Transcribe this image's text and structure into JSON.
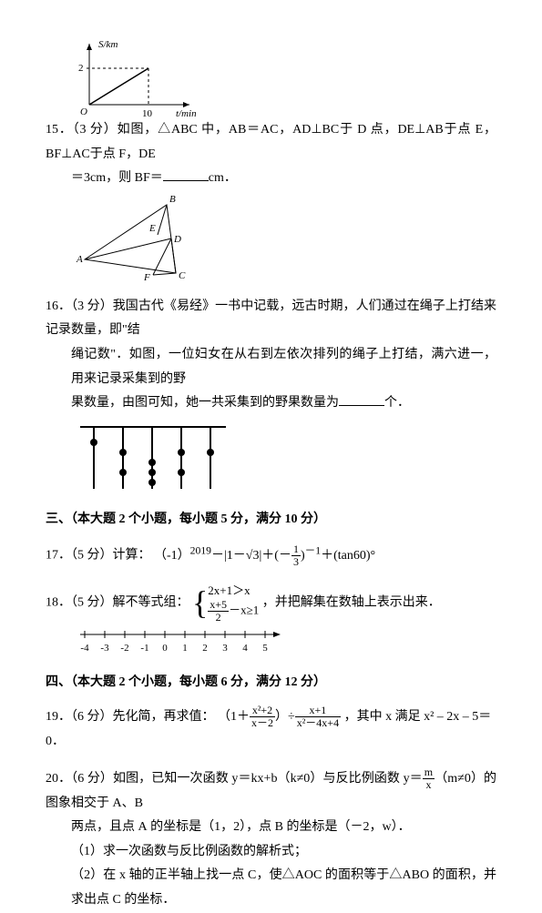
{
  "graph14": {
    "y_label": "S/km",
    "x_label": "t/min",
    "y_tick": "2",
    "x_tick": "10",
    "origin": "O"
  },
  "p15": {
    "num": "15．",
    "points": "（3 分）",
    "text1": "如图，△",
    "abc": "ABC",
    "text2": " 中，",
    "eq1": "AB＝AC",
    "c1": "，",
    "eq2": "AD⊥BC",
    "text3": "于 ",
    "d": "D",
    "text4": " 点，",
    "eq3": "DE⊥AB",
    "text5": "于点 ",
    "e": "E",
    "c2": "，",
    "eq4": "BF⊥AC",
    "text6": "于点 ",
    "f": "F",
    "c3": "，",
    "de": "DE",
    "line2_1": "＝3cm，则 ",
    "bf": "BF",
    "line2_2": "＝",
    "unit": "cm．",
    "labels": {
      "A": "A",
      "B": "B",
      "C": "C",
      "D": "D",
      "E": "E",
      "F": "F"
    }
  },
  "p16": {
    "num": "16．",
    "points": "（3 分）",
    "text1": "我国古代《易经》一书中记载，远古时期，人们通过在绳子上打结来记录数量，即\"结",
    "text2": "绳记数\"．如图，一位妇女在从右到左依次排列的绳子上打结，满六进一，用来记录采集到的野",
    "text3": "果数量，由图可知，她一共采集到的野果数量为",
    "unit": "个．",
    "knots": [
      [
        1
      ],
      [
        2,
        4
      ],
      [
        3,
        4,
        5
      ],
      [
        2,
        4
      ],
      [
        2
      ]
    ]
  },
  "section3": "三、（本大题 2 个小题，每小题 5 分，满分 10 分）",
  "p17": {
    "num": "17．",
    "points": "（5 分）",
    "label": "计算：",
    "expr_base": "（-1）",
    "expr_exp": "2019",
    "expr_mid": "－|1－",
    "expr_sqrt": "√3",
    "expr_mid2": "|＋(－",
    "frac1_num": "1",
    "frac1_den": "3",
    "expr_mid3": ")",
    "expr_exp2": "－1",
    "expr_tail": "＋(tan60)°"
  },
  "p18": {
    "num": "18．",
    "points": "（5 分）",
    "label": "解不等式组：",
    "ineq1_l": "2x+1",
    "ineq1_r": "＞x",
    "ineq2_num": "x+5",
    "ineq2_den": "2",
    "ineq2_r": "－x≥1",
    "tail": "，并把解集在数轴上表示出来．",
    "ticks": [
      "-4",
      "-3",
      "-2",
      "-1",
      "0",
      "1",
      "2",
      "3",
      "4",
      "5"
    ]
  },
  "section4": "四、（本大题 2 个小题，每小题 6 分，满分 12 分）",
  "p19": {
    "num": "19．",
    "points": "（6 分）",
    "label": "先化简，再求值：",
    "open": "（1＋",
    "f1_num": "x²+2",
    "f1_den": "x－2",
    "mid": "）÷",
    "f2_num": "x+1",
    "f2_den": "x²－4x+4",
    "tail1": "，其中 ",
    "xvar": "x",
    "tail2": " 满足 ",
    "eqn": "x² – 2x – 5＝0",
    "period": "．"
  },
  "p20": {
    "num": "20．",
    "points": "（6 分）",
    "t1": "如图，已知一次函数 ",
    "f1": "y＝kx+b",
    "t2": "（",
    "c1": "k≠0",
    "t3": "）与反比例函数 ",
    "f2a": "y＝",
    "f2_num": "m",
    "f2_den": "x",
    "t4": "（",
    "c2": "m≠0",
    "t5": "）的图象相交于 ",
    "ab": "A、B",
    "l2a": "两点，且点 ",
    "A": "A",
    "l2b": " 的坐标是（1，2），点 ",
    "B": "B",
    "l2c": " 的坐标是（－2，",
    "w": "w",
    "l2d": "）．",
    "q1": "（1）求一次函数与反比例函数的解析式；",
    "q2a": "（2）在 ",
    "xax": "x",
    "q2b": " 轴的正半轴上找一点 ",
    "C": "C",
    "q2c": "，使△",
    "aoc": "AOC",
    "q2d": " 的面积等于△",
    "abo": "ABO",
    "q2e": " 的面积，并求出点 ",
    "q2f": " 的坐标．"
  }
}
